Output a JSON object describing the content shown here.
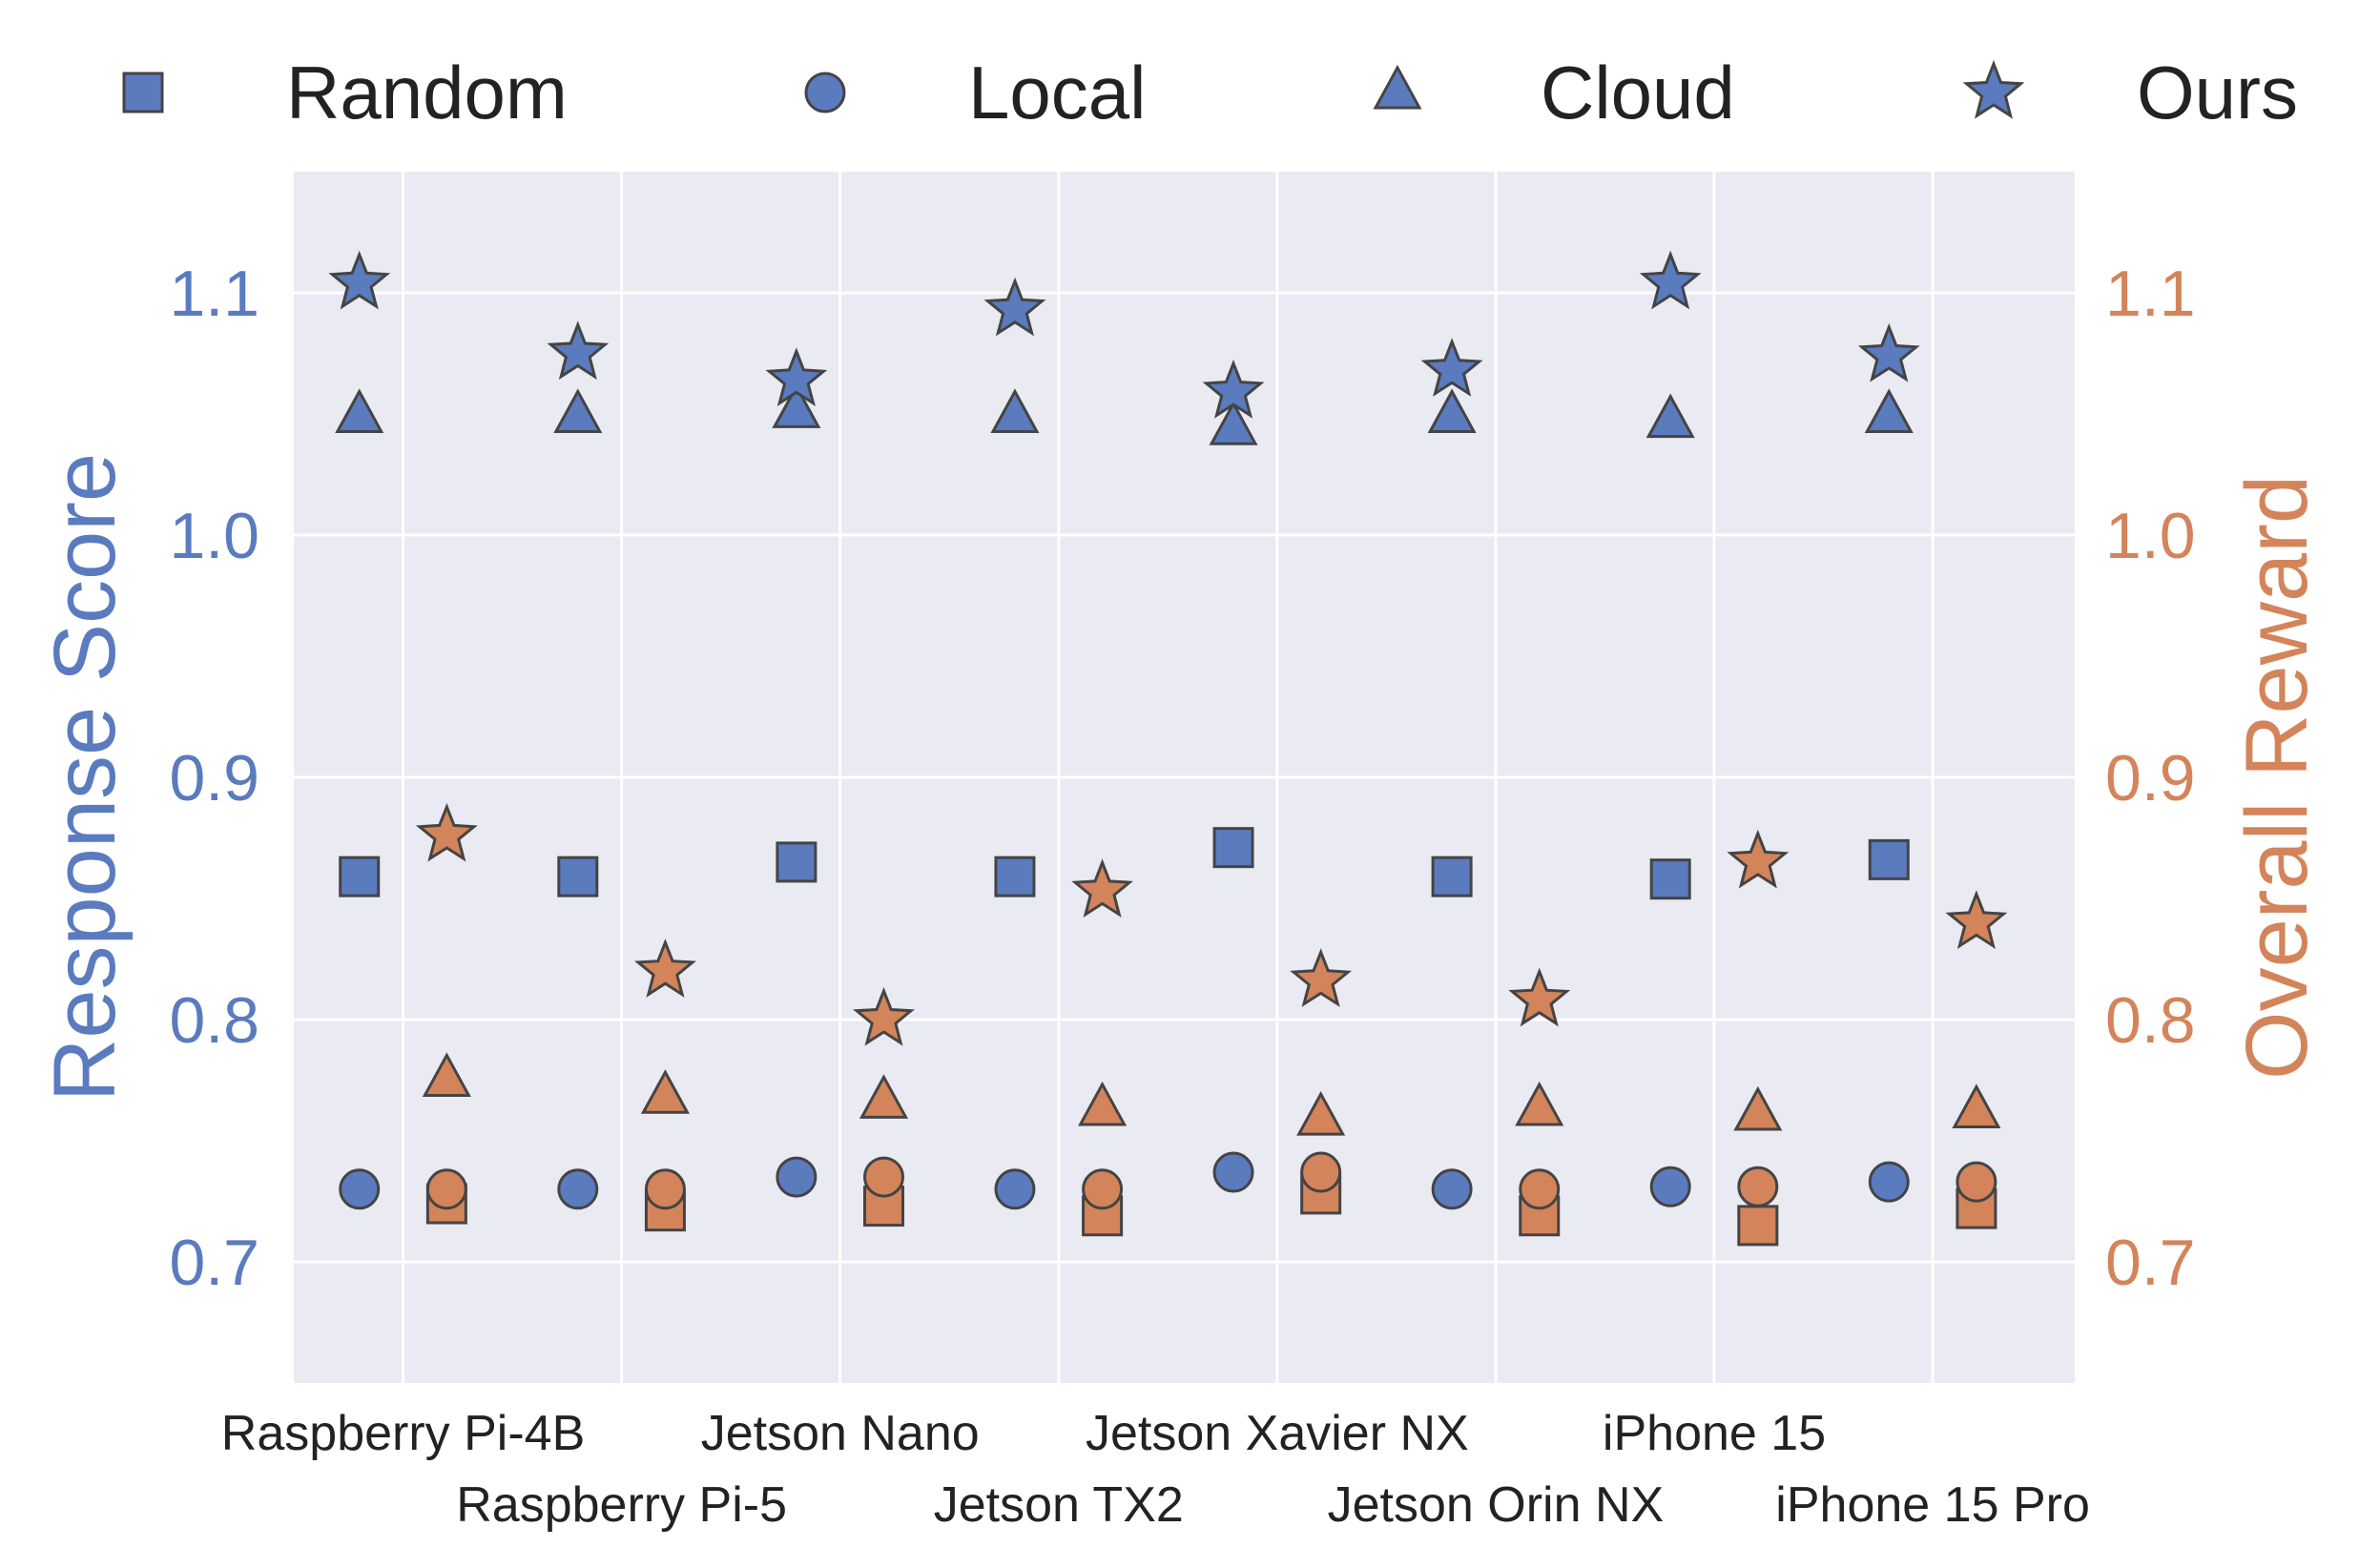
{
  "chart_data": {
    "type": "scatter",
    "title": "",
    "y_left_label": "Response Score",
    "y_right_label": "Overall Reward",
    "y_left_color": "#5b7bbf",
    "y_right_color": "#d4845a",
    "ylim": [
      0.65,
      1.15
    ],
    "yticks": [
      "0.7",
      "0.8",
      "0.9",
      "1.0",
      "1.1"
    ],
    "grid": true,
    "background": "#eaeaf2",
    "legend_position": "top",
    "devices": [
      "Raspberry Pi-4B",
      "Raspberry Pi-5",
      "Jetson Nano",
      "Jetson TX2",
      "Jetson Xavier NX",
      "Jetson Orin NX",
      "iPhone 15",
      "iPhone 15 Pro"
    ],
    "legend": [
      {
        "label": "Random",
        "marker": "square"
      },
      {
        "label": "Local",
        "marker": "circle"
      },
      {
        "label": "Cloud",
        "marker": "triangle"
      },
      {
        "label": "Ours",
        "marker": "star"
      }
    ],
    "response_score": {
      "axis": "left",
      "color": "#5b7bbf",
      "series": [
        {
          "name": "Random",
          "marker": "square",
          "values": [
            0.859,
            0.859,
            0.865,
            0.859,
            0.871,
            0.859,
            0.858,
            0.866
          ]
        },
        {
          "name": "Local",
          "marker": "circle",
          "values": [
            0.73,
            0.73,
            0.735,
            0.73,
            0.737,
            0.73,
            0.731,
            0.733
          ]
        },
        {
          "name": "Cloud",
          "marker": "triangle",
          "values": [
            1.049,
            1.049,
            1.051,
            1.049,
            1.044,
            1.049,
            1.047,
            1.049
          ]
        },
        {
          "name": "Ours",
          "marker": "star",
          "values": [
            1.104,
            1.075,
            1.064,
            1.093,
            1.059,
            1.068,
            1.104,
            1.074
          ]
        }
      ]
    },
    "overall_reward": {
      "axis": "right",
      "color": "#d4845a",
      "series": [
        {
          "name": "Random",
          "marker": "square",
          "values": [
            0.724,
            0.721,
            0.723,
            0.719,
            0.728,
            0.719,
            0.715,
            0.722
          ]
        },
        {
          "name": "Local",
          "marker": "circle",
          "values": [
            0.73,
            0.73,
            0.735,
            0.73,
            0.737,
            0.73,
            0.731,
            0.733
          ]
        },
        {
          "name": "Cloud",
          "marker": "triangle",
          "values": [
            0.775,
            0.768,
            0.766,
            0.763,
            0.759,
            0.763,
            0.761,
            0.762
          ]
        },
        {
          "name": "Ours",
          "marker": "star",
          "values": [
            0.876,
            0.82,
            0.8,
            0.853,
            0.816,
            0.808,
            0.865,
            0.84
          ]
        }
      ]
    }
  }
}
